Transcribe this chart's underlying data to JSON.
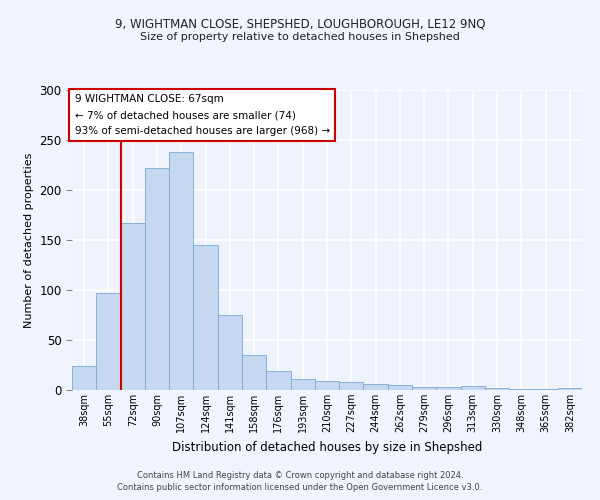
{
  "title1": "9, WIGHTMAN CLOSE, SHEPSHED, LOUGHBOROUGH, LE12 9NQ",
  "title2": "Size of property relative to detached houses in Shepshed",
  "xlabel": "Distribution of detached houses by size in Shepshed",
  "ylabel": "Number of detached properties",
  "categories": [
    "38sqm",
    "55sqm",
    "72sqm",
    "90sqm",
    "107sqm",
    "124sqm",
    "141sqm",
    "158sqm",
    "176sqm",
    "193sqm",
    "210sqm",
    "227sqm",
    "244sqm",
    "262sqm",
    "279sqm",
    "296sqm",
    "313sqm",
    "330sqm",
    "348sqm",
    "365sqm",
    "382sqm"
  ],
  "values": [
    24,
    97,
    167,
    222,
    238,
    145,
    75,
    35,
    19,
    11,
    9,
    8,
    6,
    5,
    3,
    3,
    4,
    2,
    1,
    1,
    2
  ],
  "bar_color": "#c5d8f0",
  "bar_edge_color": "#7aaad4",
  "marker_color": "#cc0000",
  "annotation_text": "9 WIGHTMAN CLOSE: 67sqm\n← 7% of detached houses are smaller (74)\n93% of semi-detached houses are larger (968) →",
  "footer": "Contains HM Land Registry data © Crown copyright and database right 2024.\nContains public sector information licensed under the Open Government Licence v3.0.",
  "ylim": [
    0,
    300
  ],
  "yticks": [
    0,
    50,
    100,
    150,
    200,
    250,
    300
  ],
  "bg_color": "#eef2fb",
  "grid_color": "#ffffff",
  "fig_bg": "#f0f4fc"
}
